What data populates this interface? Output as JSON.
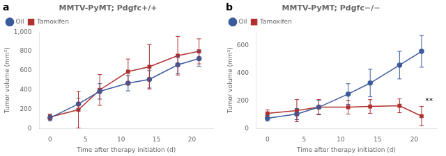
{
  "chart_data": [
    {
      "type": "line",
      "title": "MMTV-PyMT; Pdgfc+/+",
      "annotations": [
        {
          "text": "a"
        }
      ],
      "x": [
        0,
        4,
        7,
        11,
        14,
        18,
        21
      ],
      "series": [
        {
          "name": "Oil",
          "color": "#3a5a9c",
          "marker": "circle",
          "values": [
            110,
            255,
            385,
            470,
            510,
            660,
            725
          ],
          "yerr": [
            30,
            60,
            80,
            80,
            90,
            90,
            80
          ]
        },
        {
          "name": "Tamoxifen",
          "color": "#b03030",
          "marker": "square",
          "values": [
            120,
            195,
            400,
            590,
            640,
            755,
            800
          ],
          "yerr": [
            30,
            190,
            160,
            130,
            230,
            200,
            130
          ]
        }
      ],
      "xlim": [
        -1.5,
        23
      ],
      "xticks": [
        0,
        5,
        10,
        15,
        20
      ],
      "ylim": [
        0,
        1000
      ],
      "yticks": [
        0,
        200,
        400,
        600,
        800,
        {
          "value": 1000,
          "label": "1,000"
        }
      ],
      "xlabel": "Time after therapy initiation (d)",
      "ylabel": "Tumor volume (mm³)",
      "legend": "upper left",
      "grid": false
    },
    {
      "type": "line",
      "title": "MMTV-PyMT; Pdgfc−/−",
      "annotations": [
        {
          "text": "b"
        },
        {
          "text": "**",
          "x": 21.5,
          "y": 195
        }
      ],
      "x": [
        0,
        4,
        7,
        11,
        14,
        18,
        21
      ],
      "series": [
        {
          "name": "Oil",
          "color": "#3a5a9c",
          "marker": "circle",
          "values": [
            75,
            105,
            155,
            250,
            330,
            460,
            560
          ],
          "yerr": [
            20,
            40,
            50,
            75,
            100,
            100,
            115
          ]
        },
        {
          "name": "Tamoxifen",
          "color": "#b03030",
          "marker": "square",
          "values": [
            110,
            130,
            155,
            155,
            160,
            165,
            90
          ],
          "yerr": [
            25,
            80,
            55,
            50,
            50,
            50,
            70
          ]
        }
      ],
      "xlim": [
        -1.5,
        23
      ],
      "xticks": [
        0,
        5,
        10,
        15,
        20
      ],
      "ylim": [
        0,
        700
      ],
      "yticks": [
        0,
        200,
        400,
        600
      ],
      "xlabel": "Time after therapy initiation (d)",
      "ylabel": "Tumor volume (mm³)",
      "legend": "upper left",
      "grid": false
    }
  ]
}
